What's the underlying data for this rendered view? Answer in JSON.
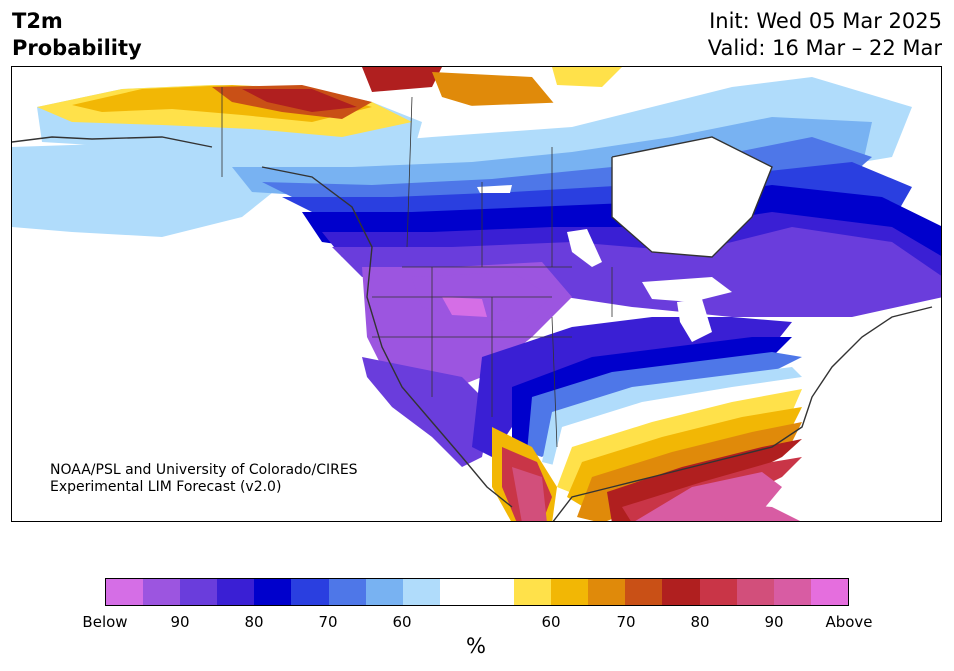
{
  "header": {
    "variable": "T2m",
    "product": "Probability",
    "init": "Init: Wed 05 Mar 2025",
    "valid": "Valid: 16 Mar – 22 Mar"
  },
  "map": {
    "credit_line1": "NOAA/PSL and University of Colorado/CIRES",
    "credit_line2": "Experimental LIM Forecast (v2.0)"
  },
  "colorbar": {
    "unit": "%",
    "tick_labels": [
      "Below",
      "90",
      "80",
      "70",
      "60",
      "60",
      "70",
      "80",
      "90",
      "Above"
    ],
    "colors": [
      "#d56ee6",
      "#9c55e0",
      "#6a3ddc",
      "#3a1fd4",
      "#0000cc",
      "#2a3fe0",
      "#4e77e8",
      "#78b2f2",
      "#b0dcfb",
      "#ffffff",
      "#ffffff",
      "#ffe14a",
      "#f2b705",
      "#e08a0a",
      "#c95016",
      "#b01f1f",
      "#c93547",
      "#d24f7b",
      "#d85ca3",
      "#e56ede"
    ]
  }
}
